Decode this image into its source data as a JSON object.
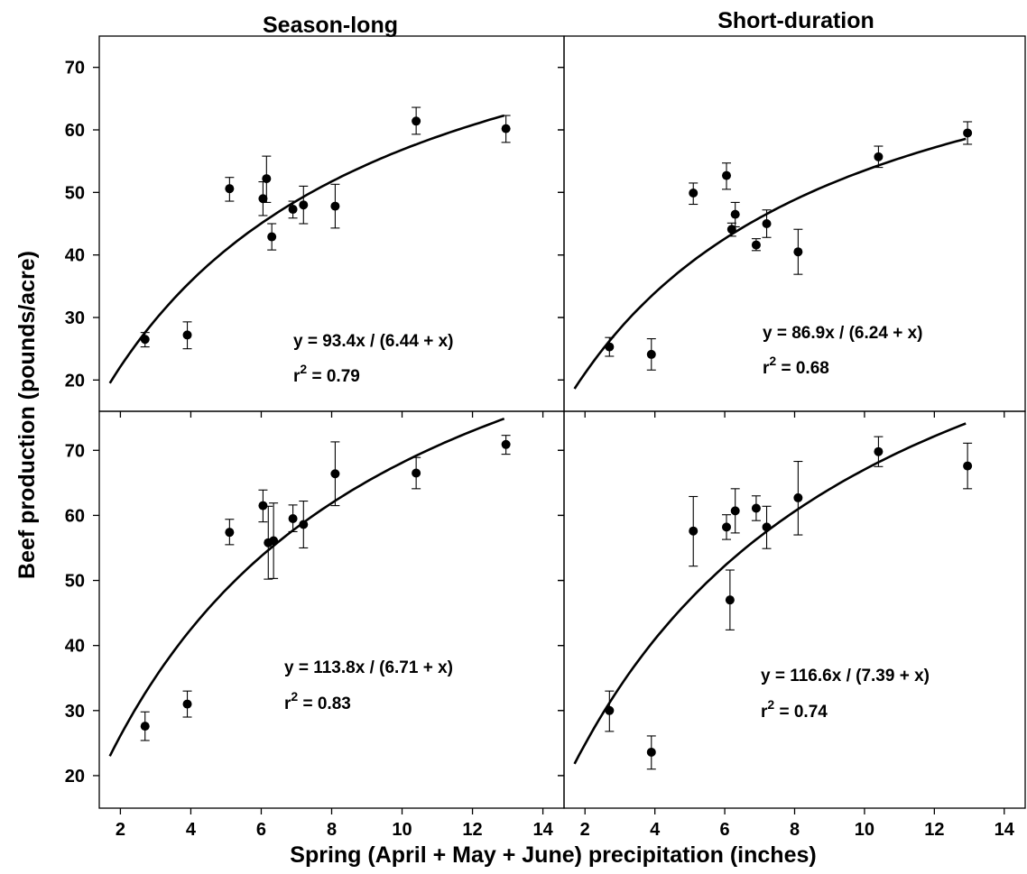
{
  "chart_data": {
    "type": "scatter",
    "column_titles": [
      "Season-long",
      "Short-duration"
    ],
    "xlabel": "Spring (April + May + June) precipitation (inches)",
    "ylabel": "Beef production  (pounds/acre)",
    "xticks": [
      "2",
      "4",
      "6",
      "8",
      "10",
      "12",
      "14"
    ],
    "xlim": [
      1.4,
      14.6
    ],
    "panels": [
      {
        "column": "Season-long",
        "row": "top",
        "ylim": [
          15,
          75
        ],
        "yticks": [
          "20",
          "30",
          "40",
          "50",
          "60",
          "70"
        ],
        "fit": {
          "a": 93.4,
          "b": 6.44,
          "x_range": [
            1.7,
            12.9
          ]
        },
        "equation": "y = 93.4x / (6.44 + x)",
        "r2_label": "r",
        "r2_value": " = 0.79",
        "points": [
          {
            "x": 2.7,
            "y": 26.5,
            "lo": 25.3,
            "hi": 27.6
          },
          {
            "x": 3.9,
            "y": 27.2,
            "lo": 25.0,
            "hi": 29.3
          },
          {
            "x": 5.1,
            "y": 50.6,
            "lo": 48.6,
            "hi": 52.4
          },
          {
            "x": 6.05,
            "y": 49.0,
            "lo": 46.3,
            "hi": 51.7
          },
          {
            "x": 6.15,
            "y": 52.2,
            "lo": 48.4,
            "hi": 55.8
          },
          {
            "x": 6.3,
            "y": 42.9,
            "lo": 40.8,
            "hi": 45.0
          },
          {
            "x": 6.9,
            "y": 47.3,
            "lo": 45.9,
            "hi": 48.6
          },
          {
            "x": 7.2,
            "y": 48.0,
            "lo": 45.0,
            "hi": 51.0
          },
          {
            "x": 8.1,
            "y": 47.8,
            "lo": 44.3,
            "hi": 51.3
          },
          {
            "x": 10.4,
            "y": 61.4,
            "lo": 59.3,
            "hi": 63.6
          },
          {
            "x": 12.95,
            "y": 60.2,
            "lo": 58.0,
            "hi": 62.3
          }
        ]
      },
      {
        "column": "Short-duration",
        "row": "top",
        "ylim": [
          15,
          75
        ],
        "yticks": [
          "20",
          "30",
          "40",
          "50",
          "60",
          "70"
        ],
        "fit": {
          "a": 86.9,
          "b": 6.24,
          "x_range": [
            1.7,
            12.9
          ]
        },
        "equation": "y = 86.9x / (6.24 + x)",
        "r2_label": "r",
        "r2_value": " = 0.68",
        "points": [
          {
            "x": 2.7,
            "y": 25.3,
            "lo": 23.8,
            "hi": 26.8
          },
          {
            "x": 3.9,
            "y": 24.1,
            "lo": 21.6,
            "hi": 26.6
          },
          {
            "x": 5.1,
            "y": 49.9,
            "lo": 48.1,
            "hi": 51.5
          },
          {
            "x": 6.05,
            "y": 52.7,
            "lo": 50.5,
            "hi": 54.7
          },
          {
            "x": 6.2,
            "y": 44.1,
            "lo": 43.0,
            "hi": 45.1
          },
          {
            "x": 6.3,
            "y": 46.5,
            "lo": 44.5,
            "hi": 48.4
          },
          {
            "x": 6.9,
            "y": 41.6,
            "lo": 40.7,
            "hi": 42.6
          },
          {
            "x": 7.2,
            "y": 45.0,
            "lo": 42.8,
            "hi": 47.2
          },
          {
            "x": 8.1,
            "y": 40.5,
            "lo": 36.9,
            "hi": 44.1
          },
          {
            "x": 10.4,
            "y": 55.7,
            "lo": 54.0,
            "hi": 57.4
          },
          {
            "x": 12.95,
            "y": 59.5,
            "lo": 57.7,
            "hi": 61.3
          }
        ]
      },
      {
        "column": "Season-long",
        "row": "bottom",
        "ylim": [
          15,
          76
        ],
        "yticks": [
          "20",
          "30",
          "40",
          "50",
          "60",
          "70"
        ],
        "fit": {
          "a": 113.8,
          "b": 6.71,
          "x_range": [
            1.7,
            12.9
          ]
        },
        "equation": "y = 113.8x / (6.71 + x)",
        "r2_label": "r",
        "r2_value": " = 0.83",
        "points": [
          {
            "x": 2.7,
            "y": 27.6,
            "lo": 25.4,
            "hi": 29.8
          },
          {
            "x": 3.9,
            "y": 31.0,
            "lo": 29.0,
            "hi": 33.0
          },
          {
            "x": 5.1,
            "y": 57.4,
            "lo": 55.5,
            "hi": 59.4
          },
          {
            "x": 6.05,
            "y": 61.5,
            "lo": 59.0,
            "hi": 63.9
          },
          {
            "x": 6.2,
            "y": 55.8,
            "lo": 50.2,
            "hi": 61.4
          },
          {
            "x": 6.35,
            "y": 56.1,
            "lo": 50.3,
            "hi": 61.9
          },
          {
            "x": 6.9,
            "y": 59.5,
            "lo": 57.5,
            "hi": 61.6
          },
          {
            "x": 7.2,
            "y": 58.6,
            "lo": 55.0,
            "hi": 62.2
          },
          {
            "x": 8.1,
            "y": 66.4,
            "lo": 61.5,
            "hi": 71.3
          },
          {
            "x": 10.4,
            "y": 66.5,
            "lo": 64.1,
            "hi": 68.9
          },
          {
            "x": 12.95,
            "y": 70.9,
            "lo": 69.4,
            "hi": 72.3
          }
        ]
      },
      {
        "column": "Short-duration",
        "row": "bottom",
        "ylim": [
          15,
          76
        ],
        "yticks": [
          "20",
          "30",
          "40",
          "50",
          "60",
          "70"
        ],
        "fit": {
          "a": 116.6,
          "b": 7.39,
          "x_range": [
            1.7,
            12.9
          ]
        },
        "equation": "y = 116.6x / (7.39 + x)",
        "r2_label": "r",
        "r2_value": " = 0.74",
        "points": [
          {
            "x": 2.7,
            "y": 30.0,
            "lo": 26.8,
            "hi": 33.0
          },
          {
            "x": 3.9,
            "y": 23.6,
            "lo": 21.0,
            "hi": 26.1
          },
          {
            "x": 5.1,
            "y": 57.6,
            "lo": 52.2,
            "hi": 62.9
          },
          {
            "x": 6.05,
            "y": 58.2,
            "lo": 56.3,
            "hi": 60.1
          },
          {
            "x": 6.15,
            "y": 47.0,
            "lo": 42.4,
            "hi": 51.6
          },
          {
            "x": 6.3,
            "y": 60.7,
            "lo": 57.3,
            "hi": 64.1
          },
          {
            "x": 6.9,
            "y": 61.1,
            "lo": 59.2,
            "hi": 63.0
          },
          {
            "x": 7.2,
            "y": 58.2,
            "lo": 54.9,
            "hi": 61.4
          },
          {
            "x": 8.1,
            "y": 62.7,
            "lo": 57.0,
            "hi": 68.3
          },
          {
            "x": 10.4,
            "y": 69.8,
            "lo": 67.5,
            "hi": 72.1
          },
          {
            "x": 12.95,
            "y": 67.6,
            "lo": 64.1,
            "hi": 71.1
          }
        ]
      }
    ]
  }
}
